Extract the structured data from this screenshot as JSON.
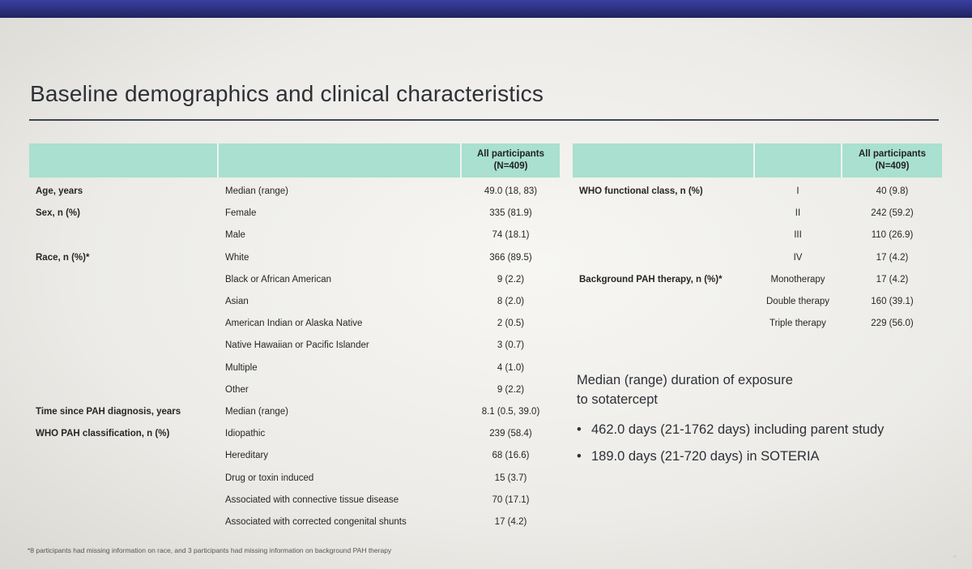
{
  "title": "Baseline demographics and clinical characteristics",
  "left_table": {
    "header": [
      "All participants",
      "(N=409)"
    ],
    "rows": [
      {
        "label": "Age, years",
        "sub": "Median (range)",
        "value": "49.0 (18, 83)"
      },
      {
        "label": "Sex, n (%)",
        "sub": "Female",
        "value": "335 (81.9)"
      },
      {
        "label": "",
        "sub": "Male",
        "value": "74 (18.1)"
      },
      {
        "label": "Race, n (%)*",
        "sub": "White",
        "value": "366 (89.5)"
      },
      {
        "label": "",
        "sub": "Black or African American",
        "value": "9 (2.2)"
      },
      {
        "label": "",
        "sub": "Asian",
        "value": "8 (2.0)"
      },
      {
        "label": "",
        "sub": "American Indian or Alaska Native",
        "value": "2 (0.5)"
      },
      {
        "label": "",
        "sub": "Native Hawaiian or Pacific Islander",
        "value": "3 (0.7)"
      },
      {
        "label": "",
        "sub": "Multiple",
        "value": "4 (1.0)"
      },
      {
        "label": "",
        "sub": "Other",
        "value": "9 (2.2)"
      },
      {
        "label": "Time since PAH diagnosis, years",
        "sub": "Median (range)",
        "value": "8.1 (0.5, 39.0)"
      },
      {
        "label": "WHO PAH classification, n (%)",
        "sub": "Idiopathic",
        "value": "239 (58.4)"
      },
      {
        "label": "",
        "sub": "Hereditary",
        "value": "68 (16.6)"
      },
      {
        "label": "",
        "sub": "Drug or toxin induced",
        "value": "15 (3.7)"
      },
      {
        "label": "",
        "sub": "Associated with connective tissue disease",
        "value": "70 (17.1)"
      },
      {
        "label": "",
        "sub": "Associated with corrected congenital shunts",
        "value": "17 (4.2)"
      }
    ]
  },
  "right_table": {
    "header": [
      "All participants",
      "(N=409)"
    ],
    "rows": [
      {
        "label": "WHO functional class, n (%)",
        "sub": "I",
        "value": "40 (9.8)"
      },
      {
        "label": "",
        "sub": "II",
        "value": "242 (59.2)"
      },
      {
        "label": "",
        "sub": "III",
        "value": "110 (26.9)"
      },
      {
        "label": "",
        "sub": "IV",
        "value": "17 (4.2)"
      },
      {
        "label": "Background PAH therapy, n (%)*",
        "sub": "Monotherapy",
        "value": "17 (4.2)"
      },
      {
        "label": "",
        "sub": "Double therapy",
        "value": "160 (39.1)"
      },
      {
        "label": "",
        "sub": "Triple therapy",
        "value": "229 (56.0)"
      }
    ]
  },
  "exposure": {
    "title_line1": "Median (range) duration of exposure",
    "title_line2": "to sotatercept",
    "bullets": [
      "462.0 days (21-1762 days) including parent study",
      "189.0 days (21-720 days) in SOTERIA"
    ]
  },
  "footnote": "*8 participants had missing information on race, and 3 participants had missing information on background PAH therapy"
}
